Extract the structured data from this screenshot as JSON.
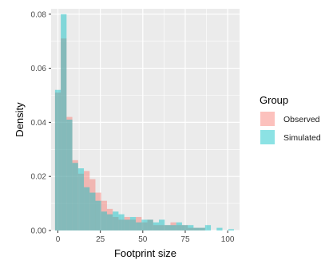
{
  "chart_data": {
    "type": "histogram",
    "xlabel": "Footprint size",
    "ylabel": "Density",
    "xlim": [
      -4,
      107
    ],
    "ylim": [
      0,
      0.082
    ],
    "x_ticks": [
      0,
      25,
      50,
      75,
      100
    ],
    "x_tick_labels": [
      "0",
      "25",
      "50",
      "75",
      "100"
    ],
    "y_ticks": [
      0,
      0.02,
      0.04,
      0.06,
      0.08
    ],
    "y_tick_labels": [
      "0.00",
      "0.02",
      "0.04",
      "0.06",
      "0.08"
    ],
    "grid": true,
    "bin_width": 3.4,
    "bin_starts": [
      -1.7,
      1.7,
      5.1,
      8.5,
      11.9,
      15.3,
      18.7,
      22.1,
      25.5,
      28.9,
      32.3,
      35.7,
      39.1,
      42.5,
      45.9,
      49.3,
      52.7,
      56.1,
      59.5,
      62.9,
      66.3,
      69.7,
      73.1,
      76.5,
      79.9,
      83.3,
      86.7,
      90.1,
      93.5,
      96.9,
      100.3
    ],
    "legend": {
      "title": "Group",
      "position": "right"
    },
    "series": [
      {
        "name": "Observed",
        "color": "#F8766D",
        "values": [
          0.051,
          0.071,
          0.042,
          0.026,
          0.021,
          0.022,
          0.019,
          0.014,
          0.011,
          0.008,
          0.005,
          0.004,
          0.005,
          0.004,
          0.005,
          0.003,
          0.004,
          0.002,
          0.002,
          0.002,
          0.003,
          0.002,
          0.002,
          0.001,
          0.001,
          0.001,
          0.0,
          0.0,
          0.0,
          0.0,
          0.0
        ]
      },
      {
        "name": "Simulated",
        "color": "#00BFC4",
        "values": [
          0.052,
          0.08,
          0.041,
          0.025,
          0.023,
          0.016,
          0.014,
          0.011,
          0.007,
          0.006,
          0.007,
          0.006,
          0.004,
          0.005,
          0.003,
          0.004,
          0.004,
          0.003,
          0.004,
          0.002,
          0.002,
          0.003,
          0.002,
          0.002,
          0.001,
          0.001,
          0.002,
          0.0,
          0.001,
          0.0,
          0.0005
        ]
      }
    ]
  }
}
